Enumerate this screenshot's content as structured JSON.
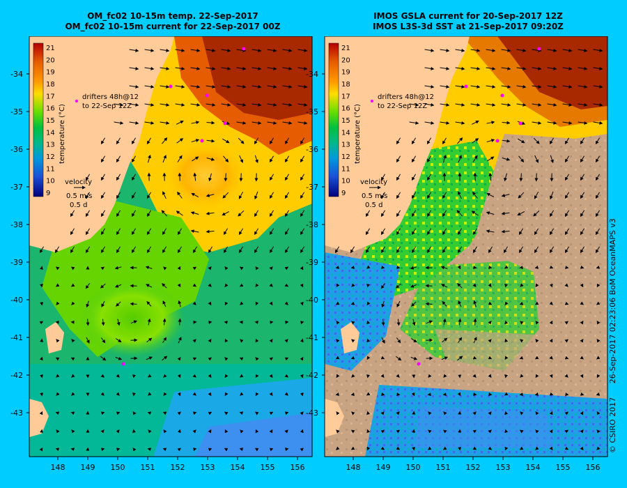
{
  "panels": [
    {
      "id": "left",
      "title_line1": "OM_fc02 10-15m temp. 22-Sep-2017",
      "title_line2": "OM_fc02 10-15m current for 22-Sep-2017 00Z",
      "legend_drifters_line1": "drifters 48h@12",
      "legend_drifters_line2": "to 22-Sep 12Z",
      "legend_velocity_title": "velocity",
      "legend_velocity_speed": "0.5 m/s",
      "legend_velocity_time": "0.5 d"
    },
    {
      "id": "right",
      "title_line1": "IMOS GSLA current for 20-Sep-2017 12Z",
      "title_line2": "IMOS L3S-3d SST at 21-Sep-2017 09:20Z",
      "legend_drifters_line1": "drifters 48h@12",
      "legend_drifters_line2": "to 22-Sep 12Z",
      "legend_velocity_title": "velocity",
      "legend_velocity_speed": "0.5 m/s",
      "legend_velocity_time": "0.5 d"
    }
  ],
  "colorbar": {
    "label": "temperature (°C)",
    "ticks": [
      "21",
      "20",
      "19",
      "18",
      "17",
      "16",
      "15",
      "14",
      "13",
      "12",
      "11",
      "10",
      "9"
    ]
  },
  "axes": {
    "lat_labels": [
      "-34",
      "-35",
      "-36",
      "-37",
      "-38",
      "-39",
      "-40",
      "-41",
      "-42",
      "-43"
    ],
    "lon_labels": [
      "148",
      "149",
      "150",
      "151",
      "152",
      "153",
      "154",
      "155",
      "156"
    ]
  },
  "credit": {
    "copyright": "© CSIRO 2017",
    "stamp": "26-Sep-2017 02:23:06 BoM OceanMAPS v3"
  },
  "colors": {
    "background": "#00ccff",
    "land": "#ffcc99",
    "no_data": "#c8a482",
    "drifter": "#ff00ff"
  }
}
